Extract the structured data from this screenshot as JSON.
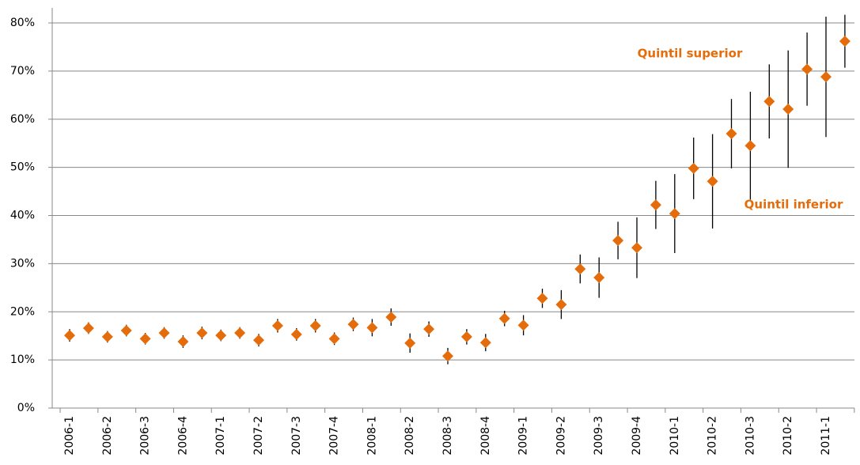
{
  "chart_data": {
    "type": "errorbar-scatter",
    "categories": [
      "2006-1",
      null,
      "2006-2",
      null,
      "2006-3",
      null,
      "2006-4",
      null,
      "2007-1",
      null,
      "2007-2",
      null,
      "2007-3",
      null,
      "2007-4",
      null,
      "2008-1",
      null,
      "2008-2",
      null,
      "2008-3",
      null,
      "2008-4",
      null,
      "2009-1",
      null,
      "2009-2",
      null,
      "2009-3",
      null,
      "2009-4",
      null,
      "2010-1",
      null,
      "2010-2",
      null,
      "2010-3",
      null,
      "2010-2",
      null,
      "2011-1",
      null
    ],
    "values": [
      15.1,
      16.6,
      14.8,
      16.1,
      14.4,
      15.6,
      13.8,
      15.6,
      15.1,
      15.6,
      14.1,
      17.1,
      15.3,
      17.1,
      14.4,
      17.4,
      16.7,
      18.9,
      13.5,
      16.4,
      10.8,
      14.8,
      13.6,
      18.6,
      17.2,
      22.8,
      21.5,
      28.9,
      27.1,
      34.8,
      33.3,
      42.2,
      40.4,
      49.8,
      47.1,
      57.0,
      54.5,
      63.7,
      62.1,
      70.4,
      68.8,
      76.2
    ],
    "errors": [
      1.3,
      1.2,
      1.2,
      1.2,
      1.2,
      1.2,
      1.3,
      1.3,
      1.2,
      1.2,
      1.3,
      1.4,
      1.3,
      1.4,
      1.3,
      1.4,
      1.8,
      1.8,
      2.0,
      1.6,
      1.7,
      1.6,
      1.8,
      1.6,
      2.1,
      2.0,
      3.0,
      3.0,
      4.2,
      3.9,
      6.3,
      5.0,
      8.2,
      6.4,
      9.8,
      7.2,
      11.2,
      7.7,
      12.2,
      7.6,
      12.5,
      5.5
    ],
    "color": "#e46c0a",
    "error_color": "#000000",
    "annotations": [
      "Quintil superior",
      "Quintil inferior"
    ],
    "ylim": [
      0,
      80
    ],
    "yticks": [
      {
        "value": 0,
        "label": "0%"
      },
      {
        "value": 10,
        "label": "10%"
      },
      {
        "value": 20,
        "label": "20%"
      },
      {
        "value": 30,
        "label": "30%"
      },
      {
        "value": 40,
        "label": "40%"
      },
      {
        "value": 50,
        "label": "50%"
      },
      {
        "value": 60,
        "label": "60%"
      },
      {
        "value": 70,
        "label": "70%"
      },
      {
        "value": 80,
        "label": "80%"
      }
    ],
    "grid": true
  }
}
